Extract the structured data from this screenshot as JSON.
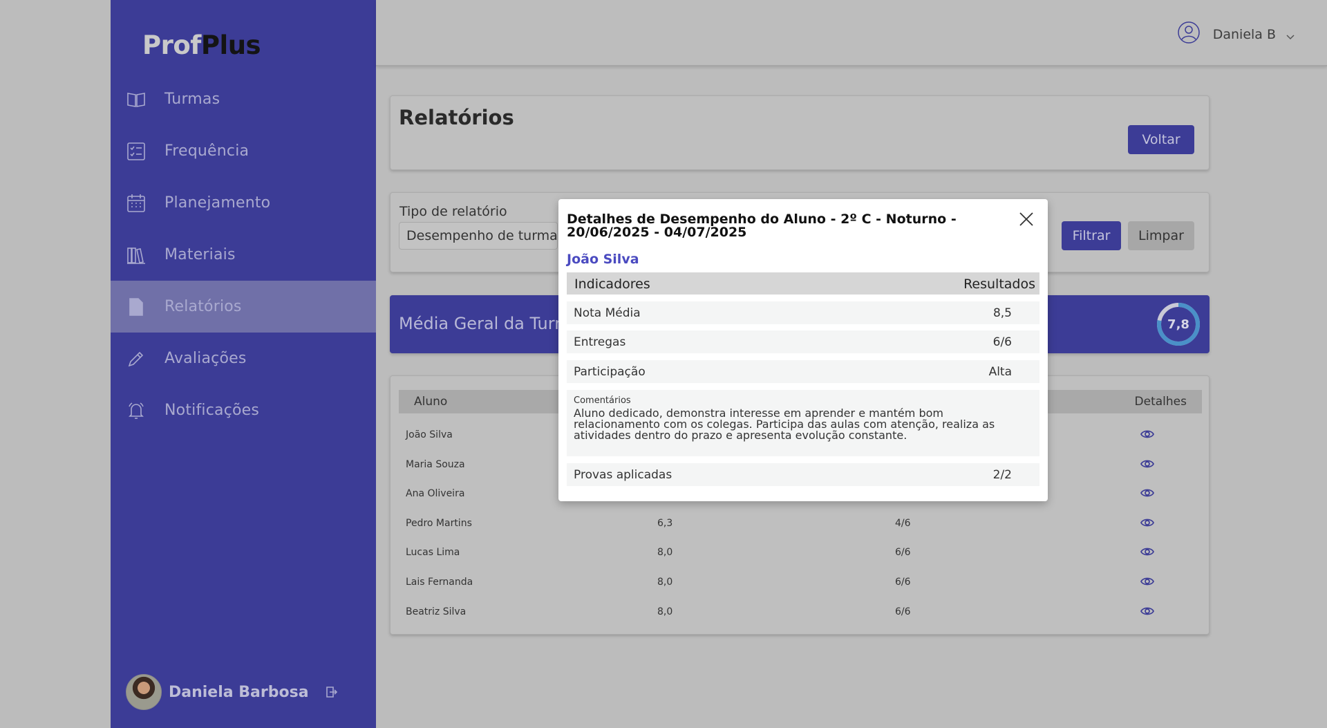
{
  "app": {
    "logo_part1": "Prof",
    "logo_part2": "Plus"
  },
  "sidebar": {
    "items": [
      {
        "label": "Turmas",
        "icon": "book-icon"
      },
      {
        "label": "Frequência",
        "icon": "checklist-icon"
      },
      {
        "label": "Planejamento",
        "icon": "calendar-icon"
      },
      {
        "label": "Materiais",
        "icon": "library-icon"
      },
      {
        "label": "Relatórios",
        "icon": "file-icon",
        "active": true
      },
      {
        "label": "Avaliações",
        "icon": "pencil-icon"
      },
      {
        "label": "Notificações",
        "icon": "bell-icon"
      }
    ],
    "user_name": "Daniela Barbosa"
  },
  "topbar": {
    "user_name": "Daniela B"
  },
  "page": {
    "title": "Relatórios",
    "back_button": "Voltar"
  },
  "filter": {
    "label": "Tipo de relatório",
    "selected": "Desempenho de turma",
    "filter_button": "Filtrar",
    "clear_button": "Limpar"
  },
  "media": {
    "label": "Média Geral da Turma",
    "value": "7,8",
    "gauge_fraction": 0.78
  },
  "table": {
    "headers": {
      "aluno": "Aluno",
      "detalhes": "Detalhes"
    },
    "rows": [
      {
        "name": "João Silva",
        "nota": "",
        "entregas": ""
      },
      {
        "name": "Maria Souza",
        "nota": "",
        "entregas": ""
      },
      {
        "name": "Ana Oliveira",
        "nota": "",
        "entregas": ""
      },
      {
        "name": "Pedro Martins",
        "nota": "6,3",
        "entregas": "4/6"
      },
      {
        "name": "Lucas Lima",
        "nota": "8,0",
        "entregas": "6/6"
      },
      {
        "name": "Lais Fernanda",
        "nota": "8,0",
        "entregas": "6/6"
      },
      {
        "name": "Beatriz Silva",
        "nota": "8,0",
        "entregas": "6/6"
      }
    ]
  },
  "modal": {
    "title": "Detalhes de Desempenho do Aluno - 2º C - Noturno - 20/06/2025 - 04/07/2025",
    "student": "João Silva",
    "col_indicadores": "Indicadores",
    "col_resultados": "Resultados",
    "rows": [
      {
        "label": "Nota Média",
        "value": "8,5"
      },
      {
        "label": "Entregas",
        "value": "6/6"
      },
      {
        "label": "Participação",
        "value": "Alta"
      }
    ],
    "comments_label": "Comentários",
    "comments_text": "Aluno dedicado, demonstra interesse em aprender e mantém bom relacionamento com os colegas. Participa das aulas com atenção, realiza as atividades dentro do prazo e apresenta evolução constante.",
    "provas_label": "Provas aplicadas",
    "provas_value": "2/2"
  },
  "colors": {
    "primary": "#3c3c96",
    "accent_text": "#4a4ac0",
    "gauge_ring": "#4a90c8"
  }
}
